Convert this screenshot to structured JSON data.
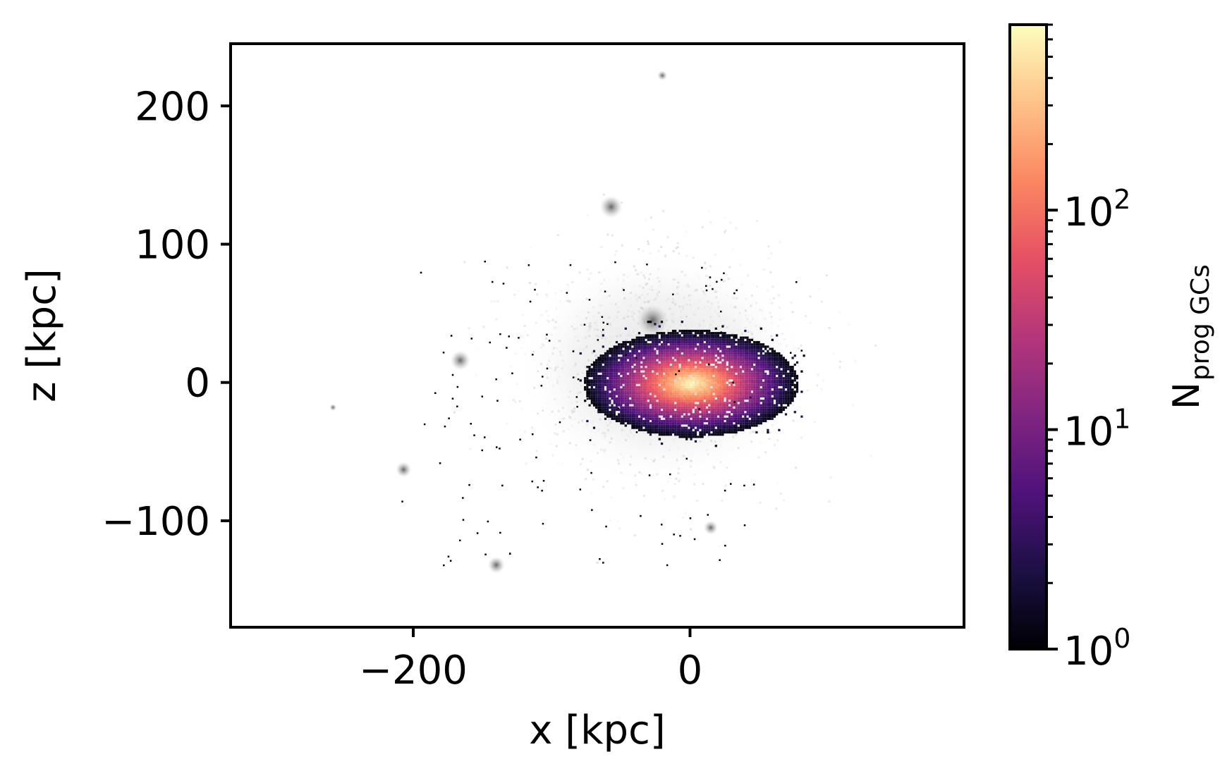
{
  "chart_data": {
    "type": "heatmap",
    "title": "",
    "xlabel": "x [kpc]",
    "ylabel": "z [kpc]",
    "xlim": [
      -332,
      198
    ],
    "ylim": [
      -177,
      245
    ],
    "x_ticks": [
      {
        "value": -200,
        "label": "−200"
      },
      {
        "value": 0,
        "label": "0"
      }
    ],
    "y_ticks": [
      {
        "value": 200,
        "label": "200"
      },
      {
        "value": 100,
        "label": "100"
      },
      {
        "value": 0,
        "label": "0"
      },
      {
        "value": -100,
        "label": "−100"
      }
    ],
    "colorbar": {
      "label_main": "N",
      "label_sub": "prog GCs",
      "scale": "log",
      "range": [
        1,
        700
      ],
      "colormap": "magma",
      "ticks": [
        {
          "value": 1,
          "base": "10",
          "exp": "0"
        },
        {
          "value": 10,
          "base": "10",
          "exp": "1"
        },
        {
          "value": 100,
          "base": "10",
          "exp": "2"
        }
      ],
      "colors": [
        "#000004",
        "#1c1044",
        "#4f127b",
        "#812581",
        "#b5367a",
        "#e55064",
        "#fb8761",
        "#fec287",
        "#fcfdbf"
      ]
    },
    "background_layer": {
      "colormap": "greys",
      "description_note": "grey 2D histogram of all particles, same projection"
    },
    "components": [
      {
        "name": "central-galaxy",
        "x": 0,
        "z": 0,
        "sigma_x": 16,
        "sigma_z": 8,
        "peak_count": 700
      },
      {
        "name": "satellite-1",
        "x": -27,
        "z": 45,
        "peak_count": 0
      },
      {
        "name": "satellite-2",
        "x": -57,
        "z": 127,
        "peak_count": 0
      },
      {
        "name": "satellite-3",
        "x": -166,
        "z": 16,
        "peak_count": 0
      },
      {
        "name": "satellite-4",
        "x": -207,
        "z": -63,
        "peak_count": 0
      },
      {
        "name": "satellite-5",
        "x": -140,
        "z": -132,
        "peak_count": 0
      },
      {
        "name": "satellite-6",
        "x": 15,
        "z": -105,
        "peak_count": 0
      },
      {
        "name": "satellite-7",
        "x": -20,
        "z": 222,
        "peak_count": 0
      },
      {
        "name": "satellite-8",
        "x": -258,
        "z": -18,
        "peak_count": 0
      }
    ]
  }
}
